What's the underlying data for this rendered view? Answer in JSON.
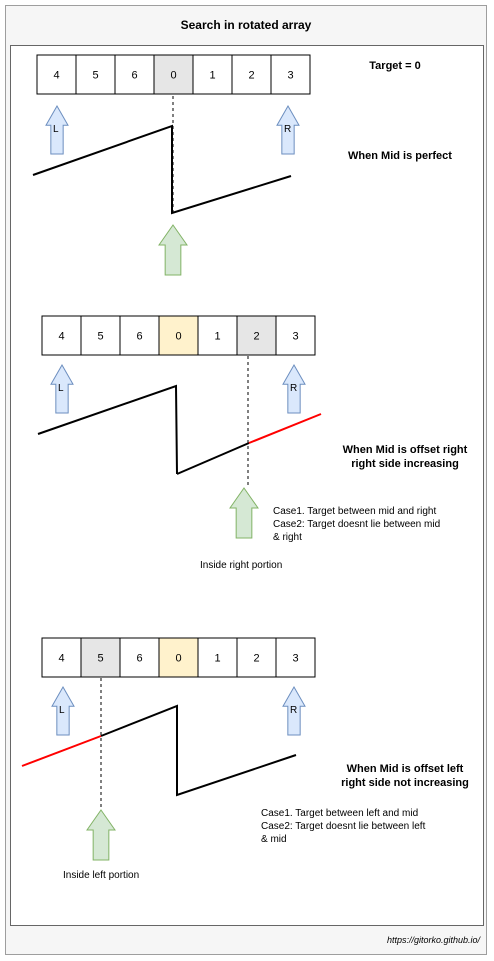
{
  "title": "Search in rotated array",
  "target_label": "Target = 0",
  "footer": "https://gitorko.github.io/",
  "arrow_letters": {
    "left": "L",
    "right": "R"
  },
  "sections": [
    {
      "values": [
        "4",
        "5",
        "6",
        "0",
        "1",
        "2",
        "3"
      ],
      "mid_index": 3,
      "target_index": null,
      "caption_lines": [
        "When Mid is perfect"
      ],
      "cases": [],
      "portion_label": ""
    },
    {
      "values": [
        "4",
        "5",
        "6",
        "0",
        "1",
        "2",
        "3"
      ],
      "mid_index": 5,
      "target_index": 3,
      "caption_lines": [
        "When Mid is offset right",
        "right side increasing"
      ],
      "cases": [
        "Case1. Target between mid and right",
        "Case2: Target doesnt lie between mid",
        "& right"
      ],
      "portion_label": "Inside right portion"
    },
    {
      "values": [
        "4",
        "5",
        "6",
        "0",
        "1",
        "2",
        "3"
      ],
      "mid_index": 1,
      "target_index": 3,
      "caption_lines": [
        "When Mid is offset left",
        "right side not increasing"
      ],
      "cases": [
        "Case1. Target between left and mid",
        "Case2: Target doesnt lie between left",
        "& mid"
      ],
      "portion_label": "Inside left portion"
    }
  ],
  "colors": {
    "mid_fill": "#e6e6e6",
    "target_fill": "#fff2cc",
    "lr_arrow_fill": "#dae8fc",
    "lr_arrow_stroke": "#6c8ebf",
    "mid_arrow_fill": "#d5e8d4",
    "mid_arrow_stroke": "#82b366",
    "highlight_line": "#ff0000"
  }
}
